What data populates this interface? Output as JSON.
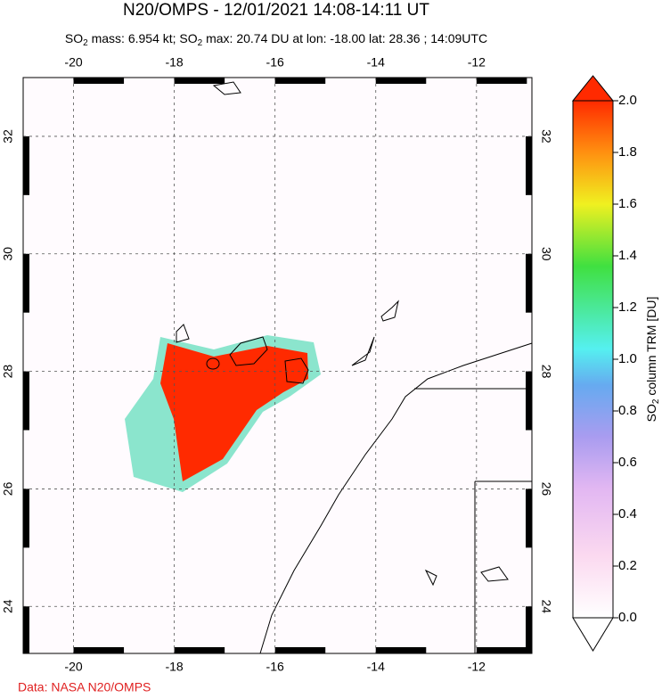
{
  "title": "N20/OMPS - 12/01/2021 14:08-14:11 UT",
  "subtitle": [
    "SO",
    "2",
    " mass: 6.954 kt; SO",
    "2",
    " max: 20.74 DU at lon: -18.00 lat: 28.36 ; 14:09UTC"
  ],
  "map": {
    "xlim": [
      -21,
      -10.9
    ],
    "ylim": [
      23.2,
      33.0
    ],
    "xticks": [
      -20,
      -18,
      -16,
      -14,
      -12
    ],
    "yticks": [
      24,
      26,
      28,
      30,
      32
    ]
  },
  "colorbar": {
    "label": [
      "SO",
      "2",
      " column TRM [DU]"
    ],
    "lim": [
      0,
      2
    ],
    "ticks": [
      {
        "value": 0,
        "label": "0.0"
      },
      {
        "value": 0.2,
        "label": "0.2"
      },
      {
        "value": 0.4,
        "label": "0.4"
      },
      {
        "value": 0.6,
        "label": "0.6"
      },
      {
        "value": 0.8,
        "label": "0.8"
      },
      {
        "value": 1,
        "label": "1.0"
      },
      {
        "value": 1.2,
        "label": "1.2"
      },
      {
        "value": 1.4,
        "label": "1.4"
      },
      {
        "value": 1.6,
        "label": "1.6"
      },
      {
        "value": 1.8,
        "label": "1.8"
      },
      {
        "value": 2,
        "label": "2.0"
      }
    ]
  },
  "credit": "Data: NASA N20/OMPS"
}
